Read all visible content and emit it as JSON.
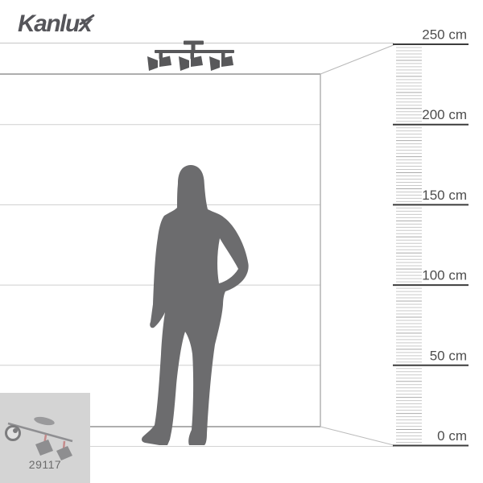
{
  "brand": {
    "logo_text": "Kanlux"
  },
  "product": {
    "code": "29117"
  },
  "ruler": {
    "unit": "cm",
    "range_cm": [
      0,
      250
    ],
    "minor_step_cm": 2,
    "major_step_cm": 50,
    "major_marks": [
      {
        "value": 250,
        "label": "250 cm"
      },
      {
        "value": 200,
        "label": "200 cm"
      },
      {
        "value": 150,
        "label": "150 cm"
      },
      {
        "value": 100,
        "label": "100 cm"
      },
      {
        "value": 50,
        "label": "50 cm"
      },
      {
        "value": 0,
        "label": "0 cm"
      }
    ]
  },
  "scene": {
    "figure_icon": "person-silhouette",
    "figure_description": "standing woman silhouette, hand on hip",
    "fixture_icon": "ceiling-light-3-spots",
    "thumbnail_icon": "product-photo-track-light"
  },
  "colors": {
    "wall_line": "#cfcfcf",
    "ceiling_line": "#aeaeae",
    "corner_line": "#b2b2b2",
    "floor_line": "#d4d4d4",
    "diagonal_line": "#bcbcbc",
    "top_line": "#c6c6c6",
    "ruler_major": "#3c3c3c",
    "ruler_tick": "#c9c9c9",
    "ruler_tick_10": "#ababab",
    "ruler_label": "#4d4d4d",
    "silhouette": "#6c6c6e",
    "fixture": "#58585a",
    "thumb_bg": "#d4d4d4",
    "logo": "#55555a",
    "accent_red": "#c58b8b"
  }
}
